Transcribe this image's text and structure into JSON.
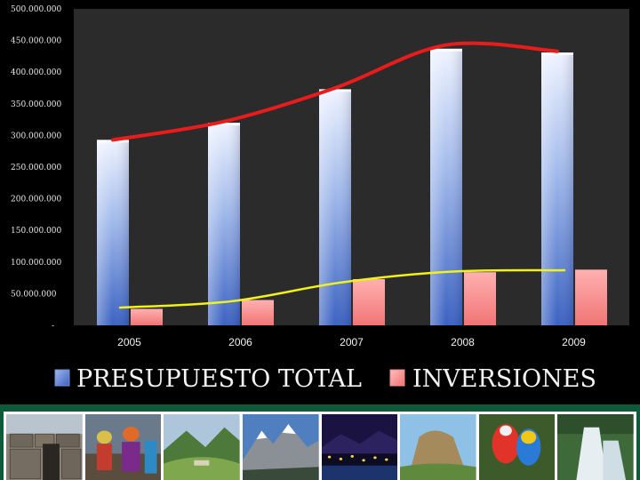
{
  "chart_data": {
    "type": "bar",
    "categories": [
      "2005",
      "2006",
      "2007",
      "2008",
      "2009"
    ],
    "y_ticks": [
      "500.000.000",
      "450.000.000",
      "400.000.000",
      "350.000.000",
      "300.000.000",
      "250.000.000",
      "200.000.000",
      "150.000.000",
      "100.000.000",
      "50.000.000",
      "-"
    ],
    "ylim": [
      0,
      500000000
    ],
    "grid": false,
    "legend_position": "bottom",
    "series": [
      {
        "name": "PRESUPUESTO TOTAL",
        "color": "#3d67c6",
        "values": [
          293000000,
          320000000,
          373000000,
          437000000,
          431000000
        ]
      },
      {
        "name": "INVERSIONES",
        "color": "#ff8a8a",
        "values": [
          26000000,
          40000000,
          73000000,
          84000000,
          88000000
        ]
      }
    ],
    "trend_lines": [
      {
        "color": "#e81c1c",
        "values": [
          293000000,
          322000000,
          375000000,
          443000000,
          433000000
        ]
      },
      {
        "color": "#f1f218",
        "values": [
          28000000,
          38000000,
          68000000,
          85000000,
          87000000
        ]
      }
    ]
  },
  "photo_strip": {
    "items": [
      "inca-stone-wall",
      "festival-dancers",
      "green-valley",
      "snow-mountains",
      "city-lights-night",
      "rock-mountain",
      "macaw-parrots",
      "waterfall"
    ]
  }
}
